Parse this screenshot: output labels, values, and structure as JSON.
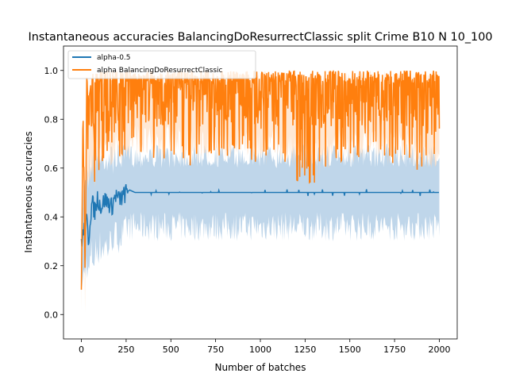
{
  "chart_data": {
    "type": "line",
    "title": "Instantaneous accuracies BalancingDoResurrectClassic split Crime B10 N 10_100",
    "xlabel": "Number of batches",
    "ylabel": "Instantaneous accuracies",
    "xlim": [
      -100,
      2100
    ],
    "ylim": [
      -0.1,
      1.1
    ],
    "xticks": [
      0,
      250,
      500,
      750,
      1000,
      1250,
      1500,
      1750,
      2000
    ],
    "xtick_labels": [
      "0",
      "250",
      "500",
      "750",
      "1000",
      "1250",
      "1500",
      "1750",
      "2000"
    ],
    "yticks": [
      0.0,
      0.2,
      0.4,
      0.6,
      0.8,
      1.0
    ],
    "ytick_labels": [
      "0.0",
      "0.2",
      "0.4",
      "0.6",
      "0.8",
      "1.0"
    ],
    "grid": false,
    "legend_position": "upper-left",
    "series": [
      {
        "name": "alpha-0.5",
        "color": "#1f77b4",
        "band_color": "#aac8e3",
        "x": [
          0,
          10,
          20,
          30,
          40,
          50,
          60,
          75,
          90,
          110,
          130,
          150,
          170,
          190,
          210,
          230,
          250,
          270,
          300,
          350,
          400,
          500,
          600,
          700,
          800,
          900,
          1000,
          1100,
          1200,
          1300,
          1500,
          1700,
          1900,
          2000
        ],
        "y": [
          0.3,
          0.33,
          0.36,
          0.38,
          0.3,
          0.4,
          0.46,
          0.42,
          0.48,
          0.44,
          0.47,
          0.46,
          0.44,
          0.49,
          0.47,
          0.48,
          0.5,
          0.51,
          0.5,
          0.5,
          0.5,
          0.5,
          0.5,
          0.5,
          0.5,
          0.5,
          0.5,
          0.5,
          0.5,
          0.5,
          0.5,
          0.5,
          0.5,
          0.5
        ],
        "band_upper": [
          0.35,
          0.55,
          0.65,
          0.72,
          0.7,
          0.7,
          0.7,
          0.7,
          0.7,
          0.7,
          0.7,
          0.7,
          0.7,
          0.7,
          0.7,
          0.7,
          0.7,
          0.7,
          0.7,
          0.7,
          0.7,
          0.7,
          0.7,
          0.7,
          0.7,
          0.7,
          0.7,
          0.7,
          0.7,
          0.7,
          0.7,
          0.7,
          0.7,
          0.7
        ],
        "band_lower": [
          0.1,
          0.05,
          0.1,
          0.15,
          0.1,
          0.15,
          0.15,
          0.15,
          0.2,
          0.2,
          0.2,
          0.2,
          0.25,
          0.25,
          0.25,
          0.25,
          0.28,
          0.3,
          0.3,
          0.3,
          0.3,
          0.3,
          0.3,
          0.3,
          0.3,
          0.3,
          0.3,
          0.3,
          0.3,
          0.3,
          0.3,
          0.3,
          0.3,
          0.3
        ]
      },
      {
        "name": "alpha BalancingDoResurrectClassic",
        "color": "#ff7f0e",
        "band_color": "#ffd5b0",
        "x": [
          0,
          10,
          20,
          30,
          40,
          60,
          80,
          100,
          150,
          200,
          250,
          300,
          400,
          500,
          600,
          700,
          800,
          900,
          1000,
          1100,
          1200,
          1300,
          1400,
          1500,
          1600,
          1700,
          1800,
          1900,
          2000
        ],
        "y": [
          0.1,
          0.85,
          0.12,
          0.8,
          0.65,
          0.82,
          0.7,
          0.88,
          0.8,
          0.86,
          0.84,
          0.88,
          0.86,
          0.88,
          0.86,
          0.87,
          0.86,
          0.88,
          0.86,
          0.87,
          0.85,
          0.86,
          0.87,
          0.86,
          0.88,
          0.86,
          0.87,
          0.85,
          0.82
        ],
        "band_upper": [
          0.15,
          0.95,
          0.2,
          0.98,
          0.9,
          1.0,
          1.0,
          1.0,
          1.0,
          1.0,
          1.0,
          1.0,
          1.0,
          1.0,
          1.0,
          1.0,
          1.0,
          1.0,
          1.0,
          1.0,
          1.0,
          1.0,
          1.0,
          1.0,
          1.0,
          1.0,
          1.0,
          1.0,
          1.0
        ],
        "band_lower": [
          -0.05,
          0.7,
          0.0,
          0.55,
          0.45,
          0.55,
          0.5,
          0.6,
          0.6,
          0.62,
          0.6,
          0.65,
          0.62,
          0.65,
          0.6,
          0.62,
          0.62,
          0.65,
          0.6,
          0.62,
          0.55,
          0.5,
          0.62,
          0.6,
          0.65,
          0.6,
          0.62,
          0.58,
          0.6
        ]
      }
    ]
  }
}
